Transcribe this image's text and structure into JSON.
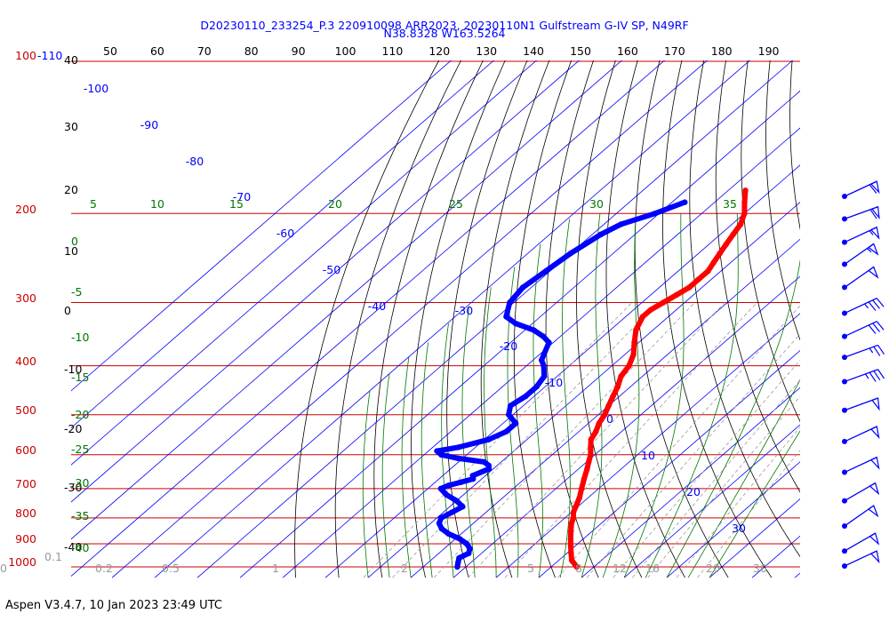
{
  "chart_data": {
    "type": "line",
    "title": "D20230110_233254_P.3 220910098 ARR2023, 20230110N1 Gulfstream G-IV SP, N49RF",
    "subtitle": "N38.8328 W163.5264",
    "top_scale_labels": [
      "50",
      "60",
      "70",
      "80",
      "90",
      "100",
      "110",
      "120",
      "130",
      "140",
      "150",
      "160",
      "170",
      "180",
      "190"
    ],
    "pressure_labels": [
      "100",
      "200",
      "300",
      "400",
      "500",
      "600",
      "700",
      "800",
      "900",
      "1000"
    ],
    "pressure_top_suffix": "-110",
    "altitude_labels": [
      "40",
      "30",
      "20",
      "10",
      "0",
      "-10",
      "-20",
      "-30",
      "-40"
    ],
    "isotherm_labels": [
      "-100",
      "-90",
      "-80",
      "-70",
      "-60",
      "-50",
      "-40",
      "-30",
      "-20",
      "-10",
      "0",
      "10",
      "20",
      "30"
    ],
    "dry_adiabat_labels": [
      "0",
      "-5",
      "-10",
      "-15",
      "-20",
      "-25",
      "-30",
      "-35",
      "-40"
    ],
    "moist_adiabat_labels": [
      "5",
      "10",
      "15",
      "20",
      "25",
      "30",
      "35"
    ],
    "mixing_ratio_labels": [
      "0.1",
      "0.2",
      "0.5",
      "1",
      "2",
      "5",
      "8",
      "12",
      "16",
      "20",
      "30",
      "40"
    ],
    "series": [
      {
        "name": "Temperature",
        "color": "#ff0000",
        "points": [
          [
            1000,
            6
          ],
          [
            970,
            3
          ],
          [
            940,
            1
          ],
          [
            910,
            -1
          ],
          [
            880,
            -3
          ],
          [
            850,
            -5
          ],
          [
            820,
            -7
          ],
          [
            800,
            -8
          ],
          [
            780,
            -9.5
          ],
          [
            760,
            -10.5
          ],
          [
            730,
            -12
          ],
          [
            700,
            -14
          ],
          [
            670,
            -16
          ],
          [
            640,
            -18
          ],
          [
            620,
            -19.5
          ],
          [
            600,
            -21
          ],
          [
            580,
            -23
          ],
          [
            560,
            -25
          ],
          [
            540,
            -26
          ],
          [
            520,
            -27.5
          ],
          [
            500,
            -28.5
          ],
          [
            480,
            -30
          ],
          [
            460,
            -31.5
          ],
          [
            440,
            -33
          ],
          [
            420,
            -35
          ],
          [
            400,
            -36
          ],
          [
            380,
            -38
          ],
          [
            360,
            -41
          ],
          [
            340,
            -44
          ],
          [
            320,
            -46
          ],
          [
            310,
            -46
          ],
          [
            300,
            -45
          ],
          [
            290,
            -44
          ],
          [
            280,
            -43
          ],
          [
            270,
            -43
          ],
          [
            260,
            -43
          ],
          [
            250,
            -44
          ],
          [
            240,
            -45
          ],
          [
            230,
            -46
          ],
          [
            220,
            -47
          ],
          [
            210,
            -48
          ],
          [
            200,
            -50
          ],
          [
            190,
            -53
          ],
          [
            180,
            -56
          ]
        ]
      },
      {
        "name": "Dewpoint",
        "color": "#0000ff",
        "points": [
          [
            1000,
            -22
          ],
          [
            980,
            -23
          ],
          [
            960,
            -24
          ],
          [
            940,
            -23
          ],
          [
            920,
            -24
          ],
          [
            900,
            -26
          ],
          [
            880,
            -29
          ],
          [
            860,
            -33
          ],
          [
            840,
            -36
          ],
          [
            820,
            -38
          ],
          [
            800,
            -39
          ],
          [
            780,
            -38
          ],
          [
            760,
            -37
          ],
          [
            740,
            -40
          ],
          [
            720,
            -44
          ],
          [
            700,
            -47
          ],
          [
            690,
            -46
          ],
          [
            680,
            -44
          ],
          [
            670,
            -42
          ],
          [
            660,
            -43
          ],
          [
            640,
            -41
          ],
          [
            630,
            -42
          ],
          [
            620,
            -44
          ],
          [
            610,
            -51
          ],
          [
            600,
            -56
          ],
          [
            590,
            -58
          ],
          [
            580,
            -54
          ],
          [
            560,
            -49
          ],
          [
            540,
            -47
          ],
          [
            520,
            -47
          ],
          [
            500,
            -51
          ],
          [
            480,
            -53
          ],
          [
            460,
            -52
          ],
          [
            440,
            -52
          ],
          [
            420,
            -53
          ],
          [
            400,
            -56
          ],
          [
            390,
            -58
          ],
          [
            380,
            -59
          ],
          [
            360,
            -61
          ],
          [
            350,
            -64
          ],
          [
            340,
            -68
          ],
          [
            330,
            -74
          ],
          [
            320,
            -78
          ],
          [
            300,
            -81
          ],
          [
            280,
            -82
          ],
          [
            260,
            -81
          ],
          [
            240,
            -80
          ],
          [
            220,
            -78
          ],
          [
            210,
            -76
          ],
          [
            200,
            -71
          ],
          [
            190,
            -67
          ]
        ]
      }
    ],
    "wind_barbs": [
      {
        "pressure": 185,
        "speed_kt": 60,
        "direction_deg": 245
      },
      {
        "pressure": 205,
        "speed_kt": 60,
        "direction_deg": 250
      },
      {
        "pressure": 228,
        "speed_kt": 55,
        "direction_deg": 245
      },
      {
        "pressure": 252,
        "speed_kt": 55,
        "direction_deg": 235
      },
      {
        "pressure": 280,
        "speed_kt": 50,
        "direction_deg": 235
      },
      {
        "pressure": 315,
        "speed_kt": 35,
        "direction_deg": 245
      },
      {
        "pressure": 350,
        "speed_kt": 30,
        "direction_deg": 245
      },
      {
        "pressure": 385,
        "speed_kt": 25,
        "direction_deg": 250
      },
      {
        "pressure": 430,
        "speed_kt": 35,
        "direction_deg": 250
      },
      {
        "pressure": 490,
        "speed_kt": 50,
        "direction_deg": 250
      },
      {
        "pressure": 565,
        "speed_kt": 50,
        "direction_deg": 245
      },
      {
        "pressure": 650,
        "speed_kt": 50,
        "direction_deg": 245
      },
      {
        "pressure": 740,
        "speed_kt": 50,
        "direction_deg": 240
      },
      {
        "pressure": 830,
        "speed_kt": 50,
        "direction_deg": 235
      },
      {
        "pressure": 930,
        "speed_kt": 50,
        "direction_deg": 240
      },
      {
        "pressure": 1000,
        "speed_kt": 50,
        "direction_deg": 245
      }
    ],
    "colors": {
      "isobar": "#cc0000",
      "isotherm": "#0000ff",
      "dry_adiabat": "#000000",
      "moist_adiabat": "#007700",
      "mixing_ratio": "#999999",
      "title": "#0000ff",
      "pressure_label": "#cc0000"
    }
  },
  "footer": "Aspen V3.4.7, 10 Jan 2023  23:49 UTC"
}
